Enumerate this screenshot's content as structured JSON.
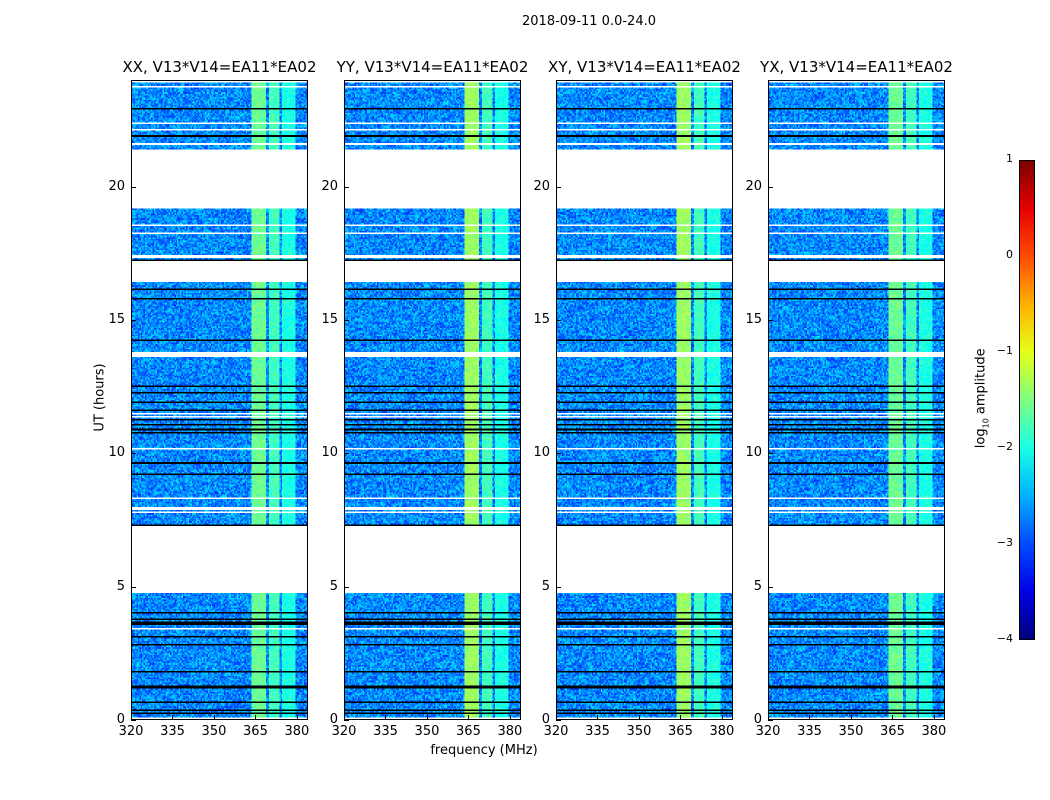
{
  "chart_data": {
    "type": "heatmap",
    "title": "2018-09-11 0.0-24.0",
    "xlabel": "frequency (MHz)",
    "ylabel": "UT (hours)",
    "xlim": [
      320,
      384
    ],
    "ylim": [
      0,
      24
    ],
    "xticks": [
      320,
      335,
      350,
      365,
      380
    ],
    "yticks": [
      0,
      5,
      10,
      15,
      20
    ],
    "panels": [
      {
        "title": "XX, V13*V14=EA11*EA02"
      },
      {
        "title": "YY, V13*V14=EA11*EA02"
      },
      {
        "title": "XY, V13*V14=EA11*EA02"
      },
      {
        "title": "YX, V13*V14=EA11*EA02"
      }
    ],
    "time_coverage_hours": [
      [
        0.05,
        4.8
      ],
      [
        7.2,
        16.4
      ],
      [
        17.2,
        19.2
      ],
      [
        21.4,
        24
      ]
    ],
    "bright_bands_mhz": [
      [
        364,
        369
      ],
      [
        370,
        374
      ],
      [
        375,
        379.5
      ]
    ],
    "background_log_amp": -2.7,
    "band_log_amp": -1.6,
    "colorbar": {
      "label_main": "log",
      "label_sub": "10",
      "label_rest": " amplitude",
      "range": [
        -4,
        1
      ],
      "ticks": [
        "1",
        "0",
        "−1",
        "−2",
        "−3",
        "−4"
      ],
      "colormap": "jet"
    }
  }
}
